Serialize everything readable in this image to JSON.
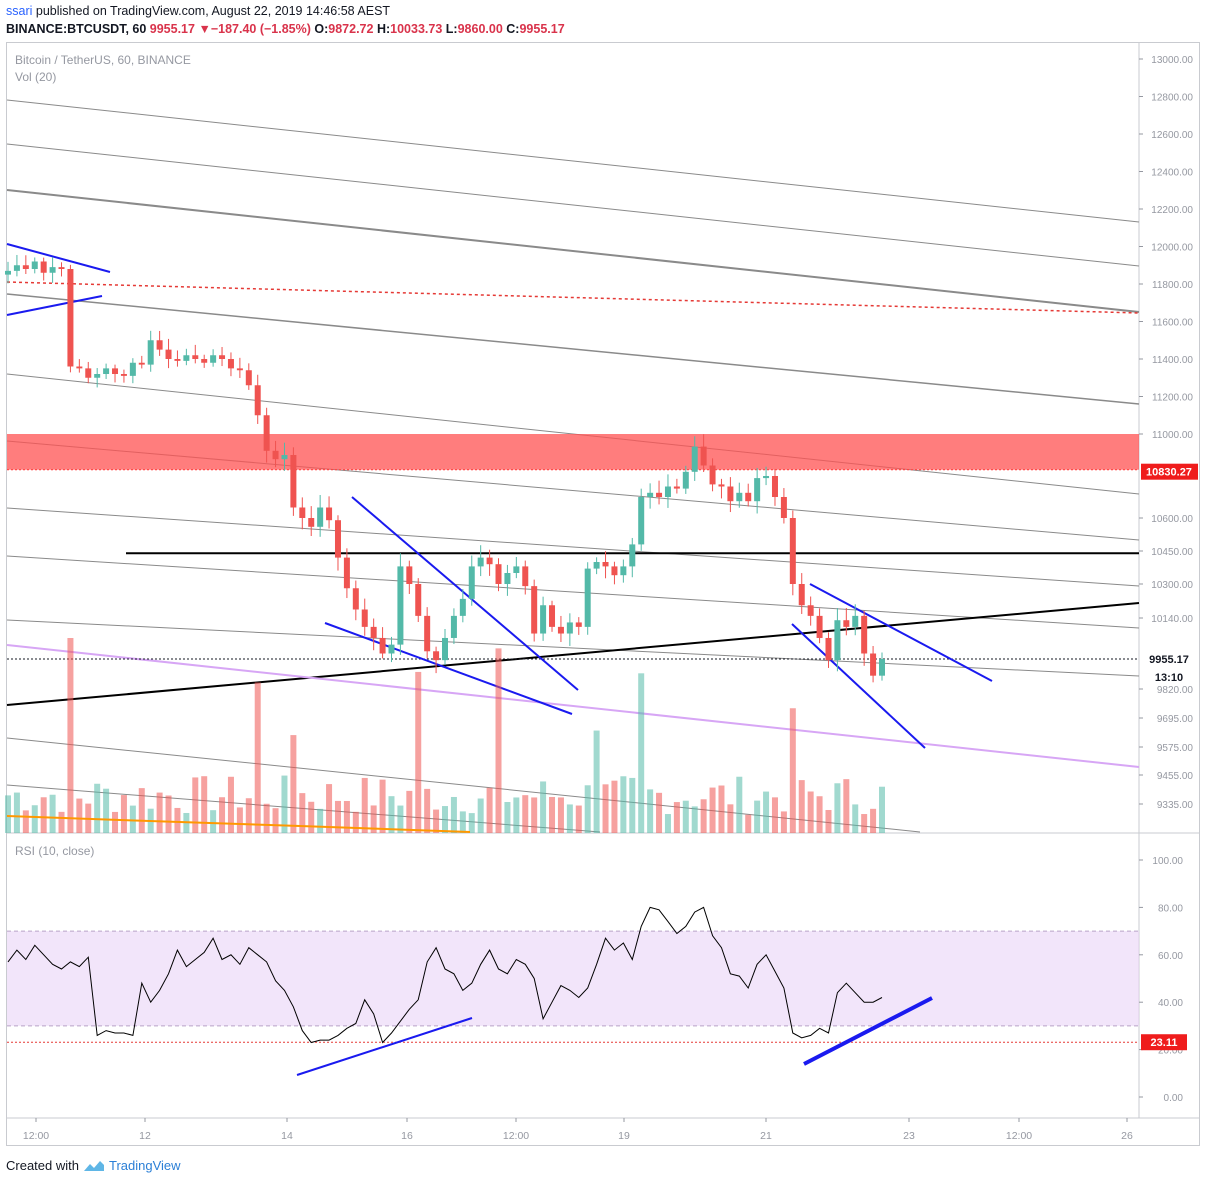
{
  "header": {
    "author": "ssari",
    "published_text": " published on TradingView.com, August 22, 2019 14:46:58 AEST",
    "symbol": "BINANCE:BTCUSDT, 60",
    "last": "9955.17",
    "change_arrow": "▼",
    "change": "−187.40 (−1.85%)",
    "o_label": "O:",
    "o": "9872.72",
    "h_label": "H:",
    "h": "10033.73",
    "l_label": "L:",
    "l": "9860.00",
    "c_label": "C:",
    "c": "9955.17"
  },
  "legend": {
    "title": "Bitcoin / TetherUS, 60, BINANCE",
    "volume": "Vol (20)",
    "rsi": "RSI (10, close)"
  },
  "price_badges": {
    "resistance": "10830.27",
    "last": "9955.17",
    "countdown": "13:10",
    "rsi_last": "23.11"
  },
  "footer": {
    "created_with": "Created with",
    "brand": "TradingView"
  },
  "colors": {
    "up": "#53b9a8",
    "down": "#ef5350",
    "zone": "#ff5252",
    "trend_blue": "#1a1aef",
    "rsi_band": "#e9d3f6"
  },
  "chart_data": [
    {
      "type": "candlestick",
      "title": "Bitcoin / TetherUS, 60, BINANCE",
      "y_ticks": [
        "13000.00",
        "12800.00",
        "12600.00",
        "12400.00",
        "12200.00",
        "12000.00",
        "11800.00",
        "11600.00",
        "11400.00",
        "11200.00",
        "11000.00",
        "10600.00",
        "10450.00",
        "10300.00",
        "10140.00",
        "9820.00",
        "9695.00",
        "9575.00",
        "9455.00",
        "9335.00"
      ],
      "x_ticks": [
        "12:00",
        "12",
        "14",
        "16",
        "12:00",
        "19",
        "21",
        "23",
        "12:00",
        "26"
      ],
      "resistance_zone": [
        10830,
        11000
      ],
      "horizontal_level": 10440,
      "close_series": [
        11870,
        11900,
        11880,
        11920,
        11860,
        11890,
        11880,
        11360,
        11350,
        11300,
        11320,
        11350,
        11320,
        11310,
        11380,
        11370,
        11500,
        11450,
        11400,
        11390,
        11420,
        11400,
        11380,
        11420,
        11400,
        11350,
        11340,
        11260,
        11100,
        10920,
        10880,
        10900,
        10650,
        10600,
        10560,
        10650,
        10590,
        10420,
        10280,
        10180,
        10100,
        10050,
        9980,
        10020,
        10380,
        10300,
        10150,
        9990,
        9950,
        10050,
        10150,
        10230,
        10380,
        10420,
        10390,
        10300,
        10350,
        10380,
        10290,
        10070,
        10200,
        10100,
        10070,
        10120,
        10100,
        10370,
        10400,
        10380,
        10340,
        10380,
        10480,
        10700,
        10720,
        10700,
        10750,
        10740,
        10820,
        10940,
        10850,
        10760,
        10750,
        10680,
        10720,
        10680,
        10790,
        10800,
        10700,
        10600,
        10300,
        10200,
        10150,
        10050,
        9950,
        10130,
        10100,
        10150,
        9980,
        9880,
        9955
      ],
      "volume_spike_heights": "relative"
    },
    {
      "type": "line",
      "title": "RSI (10, close)",
      "y_ticks": [
        "100.00",
        "80.00",
        "60.00",
        "40.00",
        "20.00",
        "0.00"
      ],
      "band": [
        30,
        70
      ],
      "level_line": 23.11,
      "ylim": [
        0,
        100
      ],
      "values": [
        57,
        62,
        58,
        64,
        60,
        56,
        54,
        57,
        55,
        59,
        26,
        28,
        27,
        27,
        26,
        48,
        40,
        45,
        52,
        62,
        55,
        58,
        61,
        67,
        58,
        60,
        56,
        63,
        60,
        57,
        49,
        45,
        38,
        28,
        23,
        24,
        24,
        26,
        29,
        31,
        41,
        35,
        23,
        27,
        32,
        37,
        41,
        57,
        63,
        54,
        52,
        45,
        48,
        56,
        62,
        54,
        52,
        58,
        56,
        50,
        33,
        40,
        47,
        45,
        42,
        46,
        56,
        67,
        62,
        65,
        58,
        72,
        80,
        79,
        74,
        69,
        72,
        78,
        80,
        68,
        63,
        52,
        51,
        46,
        56,
        60,
        53,
        46,
        27,
        25,
        26,
        29,
        27,
        44,
        48,
        44,
        40,
        40,
        42
      ]
    }
  ]
}
